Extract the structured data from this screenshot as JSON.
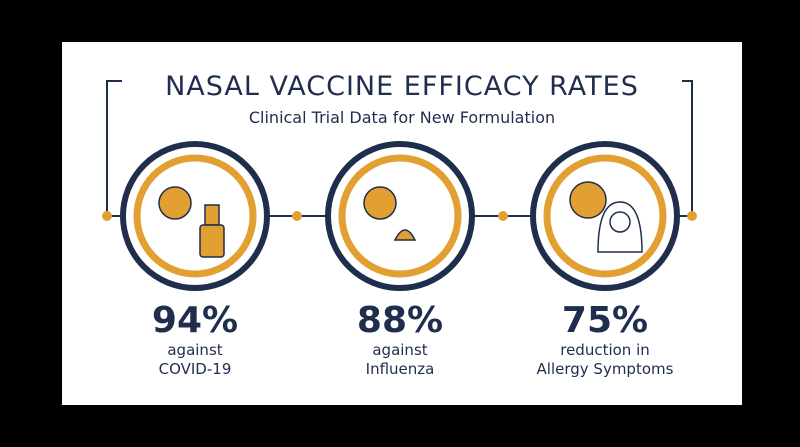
{
  "header": {
    "title": "NASAL VACCINE EFFICACY RATES",
    "subtitle": "Clinical Trial Data for New Formulation"
  },
  "stats": [
    {
      "value": "94%",
      "lines": [
        "against",
        "COVID-19"
      ]
    },
    {
      "value": "88%",
      "lines": [
        "against",
        "Influenza"
      ]
    },
    {
      "value": "75%",
      "lines": [
        "reduction in",
        "Allergy Symptoms"
      ]
    }
  ]
}
